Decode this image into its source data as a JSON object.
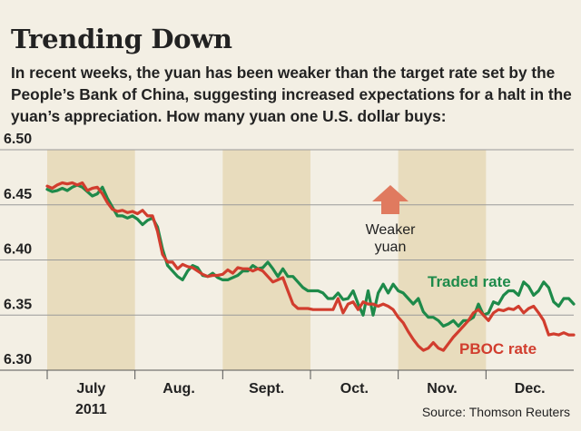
{
  "chart_data": {
    "type": "line",
    "title": "Trending Down",
    "subtitle": "In recent weeks, the yuan has been weaker than the target rate set by the People’s Bank of China, suggesting increased expectations for a halt in the yuan’s appreciation. How many yuan one U.S. dollar buys:",
    "xlabel": "",
    "ylabel": "",
    "ylim": [
      6.3,
      6.5
    ],
    "yticks": [
      "6.50",
      "6.45",
      "6.40",
      "6.35",
      "6.30"
    ],
    "months": [
      {
        "label": "July",
        "sub": "2011",
        "shaded": true
      },
      {
        "label": "Aug.",
        "sub": "",
        "shaded": false
      },
      {
        "label": "Sept.",
        "sub": "",
        "shaded": true
      },
      {
        "label": "Oct.",
        "sub": "",
        "shaded": false
      },
      {
        "label": "Nov.",
        "sub": "",
        "shaded": true
      },
      {
        "label": "Dec.",
        "sub": "",
        "shaded": false
      }
    ],
    "grid": true,
    "series": [
      {
        "name": "Traded rate",
        "color": "#1e8a4a",
        "values": [
          6.464,
          6.462,
          6.463,
          6.465,
          6.463,
          6.466,
          6.468,
          6.466,
          6.462,
          6.458,
          6.46,
          6.466,
          6.456,
          6.448,
          6.44,
          6.44,
          6.438,
          6.44,
          6.437,
          6.432,
          6.436,
          6.438,
          6.43,
          6.41,
          6.395,
          6.39,
          6.385,
          6.382,
          6.39,
          6.395,
          6.393,
          6.386,
          6.385,
          6.388,
          6.384,
          6.382,
          6.382,
          6.384,
          6.386,
          6.39,
          6.39,
          6.395,
          6.392,
          6.393,
          6.398,
          6.392,
          6.385,
          6.392,
          6.385,
          6.385,
          6.38,
          6.375,
          6.372,
          6.372,
          6.372,
          6.37,
          6.365,
          6.365,
          6.37,
          6.364,
          6.365,
          6.372,
          6.36,
          6.35,
          6.372,
          6.35,
          6.37,
          6.378,
          6.37,
          6.378,
          6.372,
          6.37,
          6.365,
          6.36,
          6.365,
          6.353,
          6.348,
          6.348,
          6.345,
          6.34,
          6.342,
          6.345,
          6.34,
          6.345,
          6.345,
          6.348,
          6.36,
          6.35,
          6.352,
          6.362,
          6.36,
          6.368,
          6.372,
          6.372,
          6.368,
          6.38,
          6.376,
          6.368,
          6.372,
          6.38,
          6.375,
          6.362,
          6.358,
          6.365,
          6.365,
          6.36
        ]
      },
      {
        "name": "PBOC rate",
        "color": "#d13d2e",
        "values": [
          6.467,
          6.465,
          6.468,
          6.47,
          6.469,
          6.47,
          6.468,
          6.47,
          6.463,
          6.465,
          6.466,
          6.46,
          6.452,
          6.446,
          6.444,
          6.445,
          6.443,
          6.444,
          6.442,
          6.445,
          6.44,
          6.44,
          6.426,
          6.405,
          6.398,
          6.398,
          6.392,
          6.396,
          6.394,
          6.393,
          6.39,
          6.387,
          6.385,
          6.386,
          6.386,
          6.387,
          6.391,
          6.388,
          6.393,
          6.392,
          6.392,
          6.39,
          6.392,
          6.39,
          6.385,
          6.38,
          6.382,
          6.384,
          6.372,
          6.36,
          6.356,
          6.356,
          6.356,
          6.355,
          6.355,
          6.355,
          6.355,
          6.355,
          6.365,
          6.352,
          6.36,
          6.362,
          6.355,
          6.362,
          6.36,
          6.36,
          6.358,
          6.36,
          6.358,
          6.355,
          6.348,
          6.343,
          6.335,
          6.328,
          6.322,
          6.318,
          6.32,
          6.325,
          6.32,
          6.318,
          6.324,
          6.33,
          6.335,
          6.34,
          6.345,
          6.352,
          6.355,
          6.35,
          6.345,
          6.352,
          6.355,
          6.354,
          6.356,
          6.355,
          6.358,
          6.352,
          6.356,
          6.358,
          6.352,
          6.345,
          6.332,
          6.333,
          6.332,
          6.334,
          6.332,
          6.332
        ]
      }
    ],
    "annotation": [
      "Weaker",
      "yuan"
    ],
    "source": "Source: Thomson Reuters"
  }
}
